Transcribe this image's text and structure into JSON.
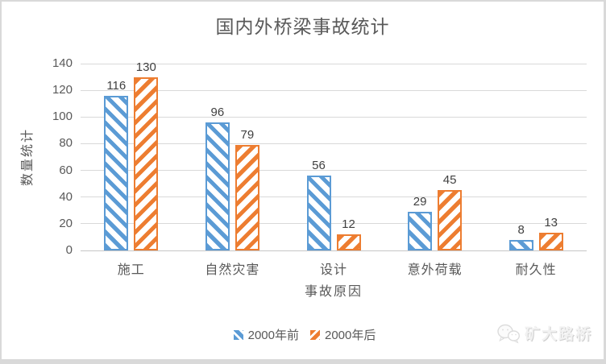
{
  "title": "国内外桥梁事故统计",
  "watermark": {
    "text": "矿大路桥",
    "icon": "wechat-icon"
  },
  "colors": {
    "series1": "#5B9BD5",
    "series2": "#ED7D31",
    "gridline": "#D9D9D9",
    "frame_border": "#D9D9D9",
    "axis_text": "#595959",
    "data_label_text": "#404040"
  },
  "chart_data": {
    "type": "bar",
    "title": "国内外桥梁事故统计",
    "categories": [
      "施工",
      "自然灾害",
      "设计",
      "意外荷载",
      "耐久性"
    ],
    "series": [
      {
        "name": "2000年前",
        "values": [
          116,
          96,
          56,
          29,
          8
        ],
        "color": "#5B9BD5",
        "hatch": "down-diagonal"
      },
      {
        "name": "2000年后",
        "values": [
          130,
          79,
          12,
          45,
          13
        ],
        "color": "#ED7D31",
        "hatch": "up-diagonal"
      }
    ],
    "xlabel": "事故原因",
    "ylabel": "数量统计",
    "ylim": [
      0,
      140
    ],
    "ytick_step": 20,
    "yticks": [
      0,
      20,
      40,
      60,
      80,
      100,
      120,
      140
    ],
    "grid": true,
    "legend_position": "bottom",
    "data_labels": true
  }
}
